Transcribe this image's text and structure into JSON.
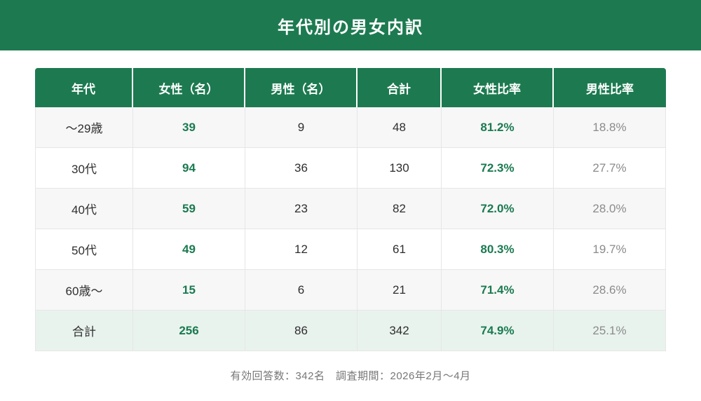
{
  "header": {
    "title": "年代別の男女内訳"
  },
  "footer": {
    "note": "有効回答数：342名　調査期間：2026年2月〜4月"
  },
  "colors": {
    "primary_green": "#1d7a50",
    "accent_text_green": "#1a7a50",
    "total_row_bg": "#e9f3ee",
    "alt_row_bg": "#f7f7f7",
    "muted_gray": "#8b8b8b"
  },
  "chart_data": {
    "type": "table",
    "title": "年代別の男女内訳",
    "columns": [
      "年代",
      "女性（名）",
      "男性（名）",
      "合計",
      "女性比率",
      "男性比率"
    ],
    "rows": [
      [
        "〜29歳",
        39,
        9,
        48,
        "81.2%",
        "18.8%"
      ],
      [
        "30代",
        94,
        36,
        130,
        "72.3%",
        "27.7%"
      ],
      [
        "40代",
        59,
        23,
        82,
        "72.0%",
        "28.0%"
      ],
      [
        "50代",
        49,
        12,
        61,
        "80.3%",
        "19.7%"
      ],
      [
        "60歳〜",
        15,
        6,
        21,
        "71.4%",
        "28.6%"
      ],
      [
        "合計",
        256,
        86,
        342,
        "74.9%",
        "25.1%"
      ]
    ],
    "note": "有効回答数：342名　調査期間：2026年2月〜4月"
  }
}
